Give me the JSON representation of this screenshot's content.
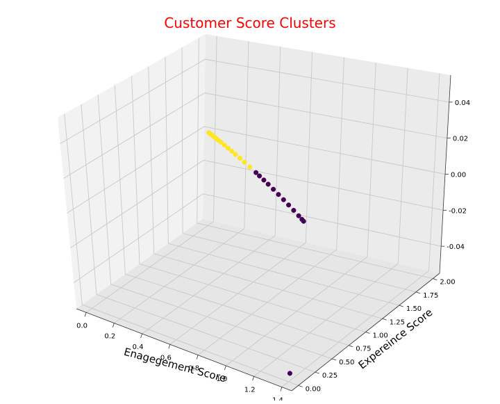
{
  "chart_data": {
    "type": "scatter",
    "projection": "3d",
    "title": "Customer Score Clusters",
    "xlabel": "Enagegement Score",
    "ylabel": "Expereince Score",
    "zlabel": "",
    "xlim": [
      -0.07,
      1.47
    ],
    "ylim": [
      -0.1,
      2.1
    ],
    "zlim": [
      -0.055,
      0.055
    ],
    "x_ticks": [
      "0.0",
      "0.2",
      "0.4",
      "0.6",
      "0.8",
      "1.0",
      "1.2",
      "1.4"
    ],
    "y_ticks": [
      "0.00",
      "0.25",
      "0.50",
      "0.75",
      "1.00",
      "1.25",
      "1.50",
      "1.75",
      "2.00"
    ],
    "z_ticks": [
      "-0.04",
      "-0.02",
      "0.00",
      "0.02",
      "0.04"
    ],
    "grid": true,
    "series": [
      {
        "cluster": 1,
        "color": "#fde725",
        "points": [
          [
            0.0,
            2.0,
            0
          ],
          [
            0.01,
            1.99,
            0
          ],
          [
            0.02,
            1.98,
            0
          ],
          [
            0.03,
            1.97,
            0
          ],
          [
            0.04,
            1.96,
            0
          ],
          [
            0.05,
            1.95,
            0
          ],
          [
            0.06,
            1.94,
            0
          ],
          [
            0.08,
            1.92,
            0
          ],
          [
            0.1,
            1.9,
            0
          ],
          [
            0.13,
            1.87,
            0
          ],
          [
            0.17,
            1.83,
            0
          ],
          [
            0.21,
            1.79,
            0
          ],
          [
            0.25,
            1.75,
            0
          ],
          [
            0.29,
            1.71,
            0
          ],
          [
            0.34,
            1.66,
            0
          ],
          [
            0.39,
            1.61,
            0
          ],
          [
            0.45,
            1.55,
            0
          ]
        ]
      },
      {
        "cluster": 0,
        "color": "#440154",
        "points": [
          [
            0.52,
            1.48,
            0
          ],
          [
            0.56,
            1.44,
            0
          ],
          [
            0.61,
            1.39,
            0
          ],
          [
            0.66,
            1.34,
            0
          ],
          [
            0.72,
            1.28,
            0
          ],
          [
            0.78,
            1.22,
            0
          ],
          [
            0.84,
            1.16,
            0
          ],
          [
            0.9,
            1.1,
            0
          ],
          [
            0.96,
            1.04,
            0
          ],
          [
            1.02,
            0.98,
            0
          ],
          [
            1.06,
            0.94,
            0
          ],
          [
            1.08,
            0.92,
            0
          ],
          [
            1.41,
            0.0,
            -0.05
          ]
        ]
      }
    ]
  }
}
